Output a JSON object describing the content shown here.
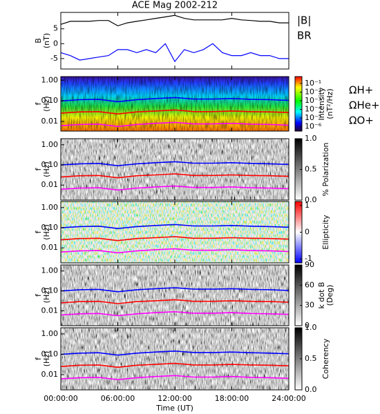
{
  "chart_data": [
    {
      "type": "line",
      "title": "ACE Mag 2002-212",
      "ylabel": [
        "B",
        "(nT)"
      ],
      "x": [
        0,
        1,
        2,
        3,
        4,
        5,
        6,
        7,
        8,
        9,
        10,
        11,
        12,
        13,
        14,
        15,
        16,
        17,
        18,
        19,
        20,
        21,
        22,
        23,
        24
      ],
      "xlim": [
        0,
        24
      ],
      "ylim": [
        -8.5,
        10.5
      ],
      "yticks": [
        5,
        0,
        -5
      ],
      "series": [
        {
          "name": "|B|",
          "color": "#000000",
          "values": [
            6.5,
            7.5,
            7.5,
            7.5,
            7.8,
            7.8,
            6,
            7,
            7.5,
            8,
            8.5,
            9,
            9.5,
            8.5,
            8,
            8,
            8,
            8,
            8.5,
            8,
            7.8,
            7.5,
            7.5,
            7,
            7
          ]
        },
        {
          "name": "BR",
          "color": "#0000ff",
          "values": [
            -3,
            -4,
            -5.5,
            -5,
            -4.5,
            -4,
            -2,
            -2,
            -3,
            -2,
            -3,
            0,
            -6,
            -2,
            -3,
            -2,
            0,
            -3,
            -4,
            -4,
            -3,
            -4,
            -4,
            -5,
            -5
          ]
        }
      ]
    },
    {
      "type": "spectrogram",
      "colormap": "rainbow",
      "ylabel": [
        "f",
        "(Hz)"
      ],
      "ylog": true,
      "ylim": [
        0.0034,
        1.5
      ],
      "yticks": [
        {
          "value": 1,
          "label": "1.00"
        },
        {
          "value": 0.1,
          "label": "0.10"
        },
        {
          "value": 0.01,
          "label": "0.01"
        }
      ],
      "x": [
        0,
        2,
        4,
        6,
        8,
        10,
        12,
        14,
        16,
        18,
        20,
        22,
        24
      ],
      "xlim": [
        0,
        24
      ],
      "colorbar": {
        "label": [
          "Intensity",
          "(nT²/Hz)"
        ],
        "log": true,
        "zlim": [
          3e-07,
          0.63
        ],
        "ticks": [
          {
            "value": 0.1,
            "label": "10⁻¹"
          },
          {
            "value": 0.01,
            "label": "10⁻²"
          },
          {
            "value": 0.001,
            "label": "10⁻³"
          },
          {
            "value": 0.0001,
            "label": "10⁻⁴"
          },
          {
            "value": 1e-05,
            "label": "10⁻⁵"
          },
          {
            "value": 1e-06,
            "label": "10⁻⁶"
          }
        ]
      },
      "series": [
        {
          "name": "ΩH+",
          "color": "#0000ff",
          "values": [
            0.099,
            0.114,
            0.119,
            0.091,
            0.114,
            0.129,
            0.144,
            0.122,
            0.122,
            0.129,
            0.119,
            0.114,
            0.106
          ]
        },
        {
          "name": "ΩHe+",
          "color": "#ff0000",
          "values": [
            0.025,
            0.029,
            0.03,
            0.023,
            0.029,
            0.032,
            0.036,
            0.03,
            0.03,
            0.032,
            0.03,
            0.029,
            0.027
          ]
        },
        {
          "name": "ΩO+",
          "color": "#ff00ff",
          "values": [
            0.0062,
            0.0071,
            0.0074,
            0.0057,
            0.0071,
            0.0081,
            0.009,
            0.0076,
            0.0076,
            0.0081,
            0.0074,
            0.0071,
            0.0066
          ]
        }
      ]
    },
    {
      "type": "spectrogram",
      "colormap": "gray",
      "ylabel": [
        "f",
        "(Hz)"
      ],
      "ylog": true,
      "ylim": [
        0.0018,
        2.0
      ],
      "yticks": [
        {
          "value": 1,
          "label": "1.00"
        },
        {
          "value": 0.1,
          "label": "0.10"
        },
        {
          "value": 0.01,
          "label": "0.01"
        }
      ],
      "x": [
        0,
        2,
        4,
        6,
        8,
        10,
        12,
        14,
        16,
        18,
        20,
        22,
        24
      ],
      "xlim": [
        0,
        24
      ],
      "colorbar": {
        "label": [
          "% Polarization"
        ],
        "log": false,
        "zlim": [
          0,
          1
        ],
        "ticks": [
          {
            "value": 1,
            "label": "1.0"
          },
          {
            "value": 0.5,
            "label": "0.5"
          },
          {
            "value": 0,
            "label": "0.0"
          }
        ]
      },
      "series": [
        {
          "color": "#0000ff",
          "values": [
            0.099,
            0.114,
            0.119,
            0.091,
            0.114,
            0.129,
            0.144,
            0.122,
            0.122,
            0.129,
            0.119,
            0.114,
            0.106
          ]
        },
        {
          "color": "#ff0000",
          "values": [
            0.025,
            0.029,
            0.03,
            0.023,
            0.029,
            0.032,
            0.036,
            0.03,
            0.03,
            0.032,
            0.03,
            0.029,
            0.027
          ]
        },
        {
          "color": "#ff00ff",
          "values": [
            0.0062,
            0.0071,
            0.0074,
            0.0057,
            0.0071,
            0.0081,
            0.009,
            0.0076,
            0.0076,
            0.0081,
            0.0074,
            0.0071,
            0.0066
          ]
        }
      ]
    },
    {
      "type": "spectrogram",
      "colormap": "bluered",
      "ylabel": [
        "f",
        "(Hz)"
      ],
      "ylog": true,
      "ylim": [
        0.0018,
        2.0
      ],
      "yticks": [
        {
          "value": 1,
          "label": "1.00"
        },
        {
          "value": 0.1,
          "label": "0.10"
        },
        {
          "value": 0.01,
          "label": "0.01"
        }
      ],
      "x": [
        0,
        2,
        4,
        6,
        8,
        10,
        12,
        14,
        16,
        18,
        20,
        22,
        24
      ],
      "xlim": [
        0,
        24
      ],
      "colorbar": {
        "label": [
          "Ellipticity"
        ],
        "log": false,
        "zlim": [
          -1.15,
          1.15
        ],
        "ticks": [
          1,
          0,
          -1
        ]
      },
      "series": [
        {
          "color": "#0000ff",
          "values": [
            0.099,
            0.114,
            0.119,
            0.091,
            0.114,
            0.129,
            0.144,
            0.122,
            0.122,
            0.129,
            0.119,
            0.114,
            0.106
          ]
        },
        {
          "color": "#ff0000",
          "values": [
            0.025,
            0.029,
            0.03,
            0.023,
            0.029,
            0.032,
            0.036,
            0.03,
            0.03,
            0.032,
            0.03,
            0.029,
            0.027
          ]
        },
        {
          "color": "#ff00ff",
          "values": [
            0.0062,
            0.0071,
            0.0074,
            0.0057,
            0.0071,
            0.0081,
            0.009,
            0.0076,
            0.0076,
            0.0081,
            0.0074,
            0.0071,
            0.0066
          ]
        }
      ]
    },
    {
      "type": "spectrogram",
      "colormap": "gray",
      "ylabel": [
        "f",
        "(Hz)"
      ],
      "ylog": true,
      "ylim": [
        0.0018,
        2.0
      ],
      "yticks": [
        {
          "value": 1,
          "label": "1.00"
        },
        {
          "value": 0.1,
          "label": "0.10"
        },
        {
          "value": 0.01,
          "label": "0.01"
        }
      ],
      "x": [
        0,
        2,
        4,
        6,
        8,
        10,
        12,
        14,
        16,
        18,
        20,
        22,
        24
      ],
      "xlim": [
        0,
        24
      ],
      "colorbar": {
        "label": [
          "k dot B",
          "(Deg)"
        ],
        "log": false,
        "zlim": [
          0,
          90
        ],
        "ticks": [
          90,
          60,
          30,
          0
        ]
      },
      "series": [
        {
          "color": "#0000ff",
          "values": [
            0.099,
            0.114,
            0.119,
            0.091,
            0.114,
            0.129,
            0.144,
            0.122,
            0.122,
            0.129,
            0.119,
            0.114,
            0.106
          ]
        },
        {
          "color": "#ff0000",
          "values": [
            0.025,
            0.029,
            0.03,
            0.023,
            0.029,
            0.032,
            0.036,
            0.03,
            0.03,
            0.032,
            0.03,
            0.029,
            0.027
          ]
        },
        {
          "color": "#ff00ff",
          "values": [
            0.0062,
            0.0071,
            0.0074,
            0.0057,
            0.0071,
            0.0081,
            0.009,
            0.0076,
            0.0076,
            0.0081,
            0.0074,
            0.0071,
            0.0066
          ]
        }
      ]
    },
    {
      "type": "spectrogram",
      "colormap": "gray",
      "ylabel": [
        "f",
        "(Hz)"
      ],
      "ylog": true,
      "ylim": [
        0.0018,
        2.0
      ],
      "yticks": [
        {
          "value": 1,
          "label": "1.00"
        },
        {
          "value": 0.1,
          "label": "0.10"
        },
        {
          "value": 0.01,
          "label": "0.01"
        }
      ],
      "x": [
        0,
        2,
        4,
        6,
        8,
        10,
        12,
        14,
        16,
        18,
        20,
        22,
        24
      ],
      "xlim": [
        0,
        24
      ],
      "xticks": [
        {
          "value": 0,
          "label": "00:00:00"
        },
        {
          "value": 6,
          "label": "06:00:00"
        },
        {
          "value": 12,
          "label": "12:00:00"
        },
        {
          "value": 18,
          "label": "18:00:00"
        },
        {
          "value": 24,
          "label": "24:00:00"
        }
      ],
      "xlabel": "Time (UT)",
      "colorbar": {
        "label": [
          "Coherency"
        ],
        "log": false,
        "zlim": [
          0,
          1
        ],
        "ticks": [
          {
            "value": 1,
            "label": "1.0"
          },
          {
            "value": 0.5,
            "label": "0.5"
          },
          {
            "value": 0,
            "label": "0.0"
          }
        ]
      },
      "series": [
        {
          "color": "#0000ff",
          "values": [
            0.099,
            0.114,
            0.119,
            0.091,
            0.114,
            0.129,
            0.144,
            0.122,
            0.122,
            0.129,
            0.119,
            0.114,
            0.106
          ]
        },
        {
          "color": "#ff0000",
          "values": [
            0.025,
            0.029,
            0.03,
            0.023,
            0.029,
            0.032,
            0.036,
            0.03,
            0.03,
            0.032,
            0.03,
            0.029,
            0.027
          ]
        },
        {
          "color": "#ff00ff",
          "values": [
            0.0062,
            0.0071,
            0.0074,
            0.0057,
            0.0071,
            0.0081,
            0.009,
            0.0076,
            0.0076,
            0.0081,
            0.0074,
            0.0071,
            0.0066
          ]
        }
      ]
    }
  ]
}
